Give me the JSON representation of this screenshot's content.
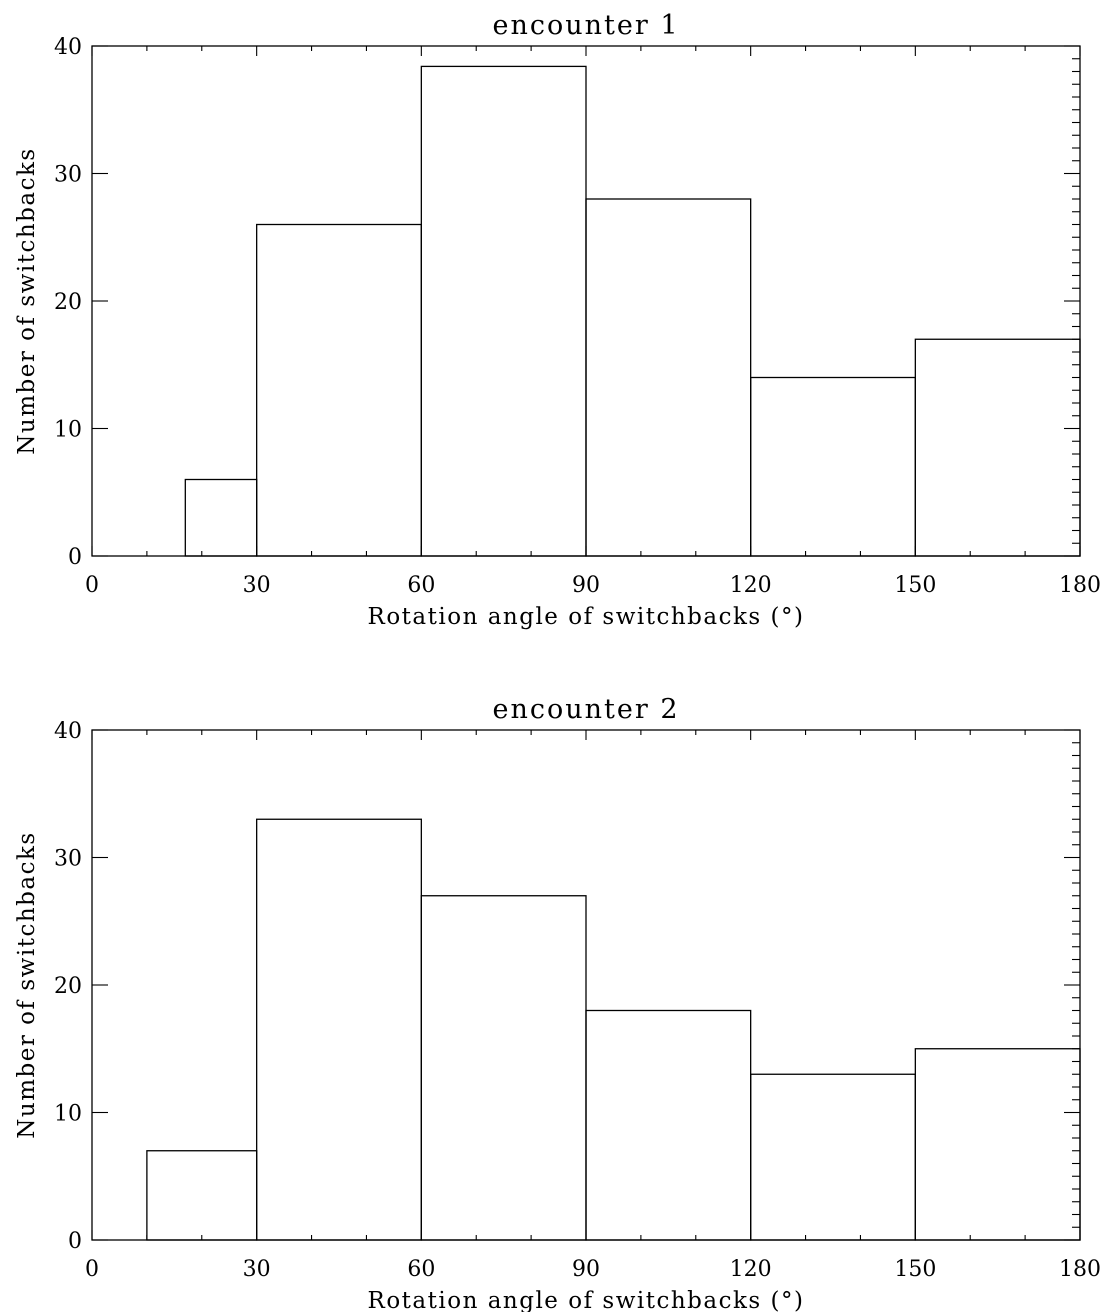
{
  "chart_data": [
    {
      "type": "bar",
      "title": "encounter 1",
      "xlabel": "Rotation angle of switchbacks (°)",
      "ylabel": "Number of switchbacks",
      "xlim": [
        0,
        180
      ],
      "ylim": [
        0,
        40
      ],
      "xticks": [
        0,
        30,
        60,
        90,
        120,
        150,
        180
      ],
      "yticks": [
        0,
        10,
        20,
        30,
        40
      ],
      "grid": false,
      "bins": [
        {
          "start": 17,
          "end": 30,
          "value": 6
        },
        {
          "start": 30,
          "end": 60,
          "value": 26
        },
        {
          "start": 60,
          "end": 90,
          "value": 38.4
        },
        {
          "start": 90,
          "end": 120,
          "value": 28
        },
        {
          "start": 120,
          "end": 150,
          "value": 14
        },
        {
          "start": 150,
          "end": 180,
          "value": 17
        }
      ]
    },
    {
      "type": "bar",
      "title": "encounter 2",
      "xlabel": "Rotation angle of switchbacks (°)",
      "ylabel": "Number of switchbacks",
      "xlim": [
        0,
        180
      ],
      "ylim": [
        0,
        40
      ],
      "xticks": [
        0,
        30,
        60,
        90,
        120,
        150,
        180
      ],
      "yticks": [
        0,
        10,
        20,
        30,
        40
      ],
      "grid": false,
      "bins": [
        {
          "start": 10,
          "end": 30,
          "value": 7
        },
        {
          "start": 30,
          "end": 60,
          "value": 33
        },
        {
          "start": 60,
          "end": 90,
          "value": 27
        },
        {
          "start": 90,
          "end": 120,
          "value": 18
        },
        {
          "start": 120,
          "end": 150,
          "value": 13
        },
        {
          "start": 150,
          "end": 180,
          "value": 15
        }
      ]
    }
  ]
}
